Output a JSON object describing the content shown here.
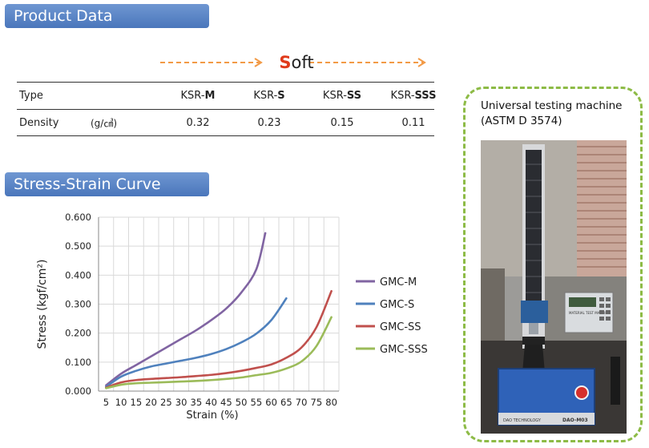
{
  "product_banner": {
    "title": "Product Data"
  },
  "stress_banner": {
    "title": "Stress-Strain Curve"
  },
  "soft_indicator": {
    "first_letter": "S",
    "rest": "oft",
    "arrow_color": "#f29a46",
    "letter_color": "#e03a1a"
  },
  "product_table": {
    "type_label": "Type",
    "density_label": "Density",
    "density_unit": "(g/㎤)",
    "columns": [
      {
        "prefix": "KSR-",
        "suffix": "M"
      },
      {
        "prefix": "KSR-",
        "suffix": "S"
      },
      {
        "prefix": "KSR-",
        "suffix": "SS"
      },
      {
        "prefix": "KSR-",
        "suffix": "SSS"
      }
    ],
    "densities": [
      "0.32",
      "0.23",
      "0.15",
      "0.11"
    ]
  },
  "machine": {
    "caption_line1": "Universal testing machine",
    "caption_line2": "(ASTM D 3574)",
    "device_panel_text": "MATERIAL TEST MACHINE",
    "brand_text": "DAO TECHNOLOGY",
    "model_text": "DAO-M03",
    "border_color": "#8dbb46"
  },
  "chart_data": {
    "type": "line",
    "xlabel": "Strain (%)",
    "ylabel": "Stress (kgf/cm²)",
    "x": [
      5,
      10,
      15,
      20,
      25,
      30,
      35,
      40,
      45,
      50,
      55,
      60,
      65,
      70,
      75,
      80
    ],
    "ylim": [
      0,
      0.6
    ],
    "yticks": [
      "0.000",
      "0.100",
      "0.200",
      "0.300",
      "0.400",
      "0.500",
      "0.600"
    ],
    "grid": true,
    "legend": "right",
    "series": [
      {
        "name": "GMC-M",
        "color": "#8064a2",
        "points": [
          [
            5,
            0.02
          ],
          [
            10,
            0.06
          ],
          [
            15,
            0.09
          ],
          [
            20,
            0.12
          ],
          [
            25,
            0.15
          ],
          [
            30,
            0.18
          ],
          [
            35,
            0.21
          ],
          [
            40,
            0.245
          ],
          [
            45,
            0.285
          ],
          [
            50,
            0.34
          ],
          [
            55,
            0.42
          ],
          [
            58,
            0.545
          ]
        ]
      },
      {
        "name": "GMC-S",
        "color": "#4f81bd",
        "points": [
          [
            5,
            0.015
          ],
          [
            10,
            0.05
          ],
          [
            15,
            0.07
          ],
          [
            20,
            0.085
          ],
          [
            25,
            0.095
          ],
          [
            30,
            0.105
          ],
          [
            35,
            0.115
          ],
          [
            40,
            0.128
          ],
          [
            45,
            0.145
          ],
          [
            50,
            0.168
          ],
          [
            55,
            0.198
          ],
          [
            60,
            0.245
          ],
          [
            65,
            0.32
          ]
        ]
      },
      {
        "name": "GMC-SS",
        "color": "#c0504d",
        "points": [
          [
            5,
            0.012
          ],
          [
            10,
            0.03
          ],
          [
            15,
            0.038
          ],
          [
            20,
            0.042
          ],
          [
            25,
            0.045
          ],
          [
            30,
            0.048
          ],
          [
            35,
            0.052
          ],
          [
            40,
            0.056
          ],
          [
            45,
            0.062
          ],
          [
            50,
            0.07
          ],
          [
            55,
            0.08
          ],
          [
            60,
            0.092
          ],
          [
            65,
            0.115
          ],
          [
            70,
            0.15
          ],
          [
            75,
            0.22
          ],
          [
            80,
            0.345
          ]
        ]
      },
      {
        "name": "GMC-SSS",
        "color": "#9bbb59",
        "points": [
          [
            5,
            0.01
          ],
          [
            10,
            0.022
          ],
          [
            15,
            0.027
          ],
          [
            20,
            0.029
          ],
          [
            25,
            0.031
          ],
          [
            30,
            0.033
          ],
          [
            35,
            0.035
          ],
          [
            40,
            0.038
          ],
          [
            45,
            0.042
          ],
          [
            50,
            0.047
          ],
          [
            55,
            0.055
          ],
          [
            60,
            0.063
          ],
          [
            65,
            0.078
          ],
          [
            70,
            0.102
          ],
          [
            75,
            0.155
          ],
          [
            80,
            0.255
          ]
        ]
      }
    ]
  }
}
